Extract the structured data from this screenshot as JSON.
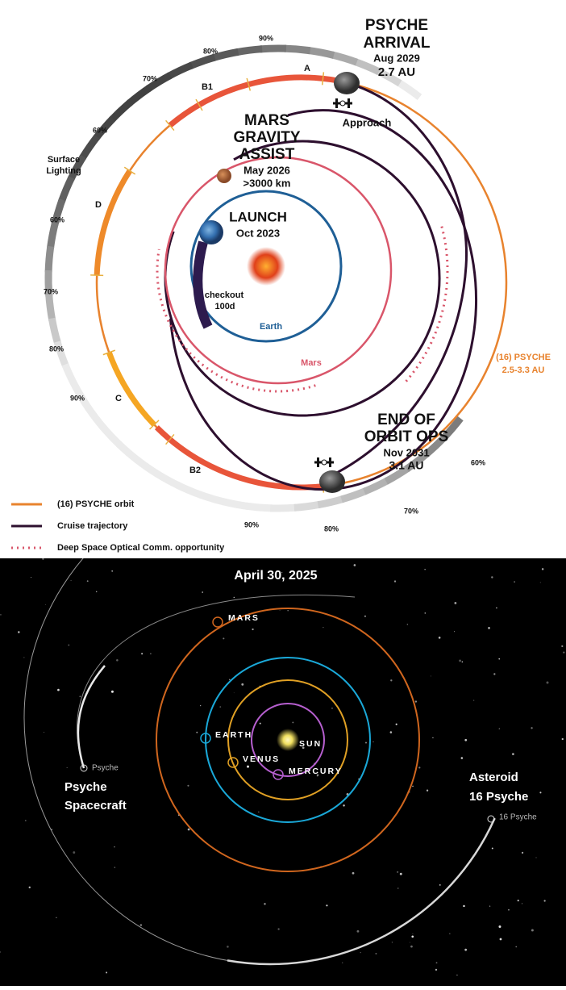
{
  "top": {
    "arrival": {
      "lines": [
        "PSYCHE",
        "ARRIVAL"
      ],
      "date": "Aug 2029",
      "distance": "2.7 AU"
    },
    "approach": "Approach",
    "mars_assist": {
      "lines": [
        "MARS",
        "GRAVITY",
        "ASSIST"
      ],
      "date": "May 2026",
      "distance": ">3000 km"
    },
    "launch": {
      "title": "LAUNCH",
      "date": "Oct 2023"
    },
    "checkout": [
      "checkout",
      "100d"
    ],
    "earth": "Earth",
    "mars": "Mars",
    "psyche_orbit": {
      "name": "(16) PSYCHE",
      "range": "2.5-3.3 AU"
    },
    "end_ops": {
      "lines": [
        "END OF",
        "ORBIT OPS"
      ],
      "date": "Nov 2031",
      "distance": "3.1 AU"
    },
    "surface_lighting": [
      "Surface",
      "Lighting"
    ],
    "lighting_labels": [
      "90%",
      "80%",
      "70%",
      "60%",
      "60%",
      "70%",
      "80%",
      "90%",
      "90%",
      "80%",
      "70%",
      "60%"
    ],
    "segments": [
      "A",
      "B1",
      "D",
      "C",
      "B2"
    ],
    "legend": [
      "(16) PSYCHE orbit",
      "Cruise trajectory",
      "Deep Space Optical Comm. opportunity"
    ]
  },
  "bottom": {
    "date": "April 30, 2025",
    "bodies": [
      "MARS",
      "EARTH",
      "SUN",
      "VENUS",
      "MERCURY"
    ],
    "spacecraft_marker": "Psyche",
    "asteroid_marker": "16 Psyche",
    "spacecraft_caption": [
      "Psyche",
      "Spacecraft"
    ],
    "asteroid_caption": [
      "Asteroid",
      "16 Psyche"
    ]
  }
}
